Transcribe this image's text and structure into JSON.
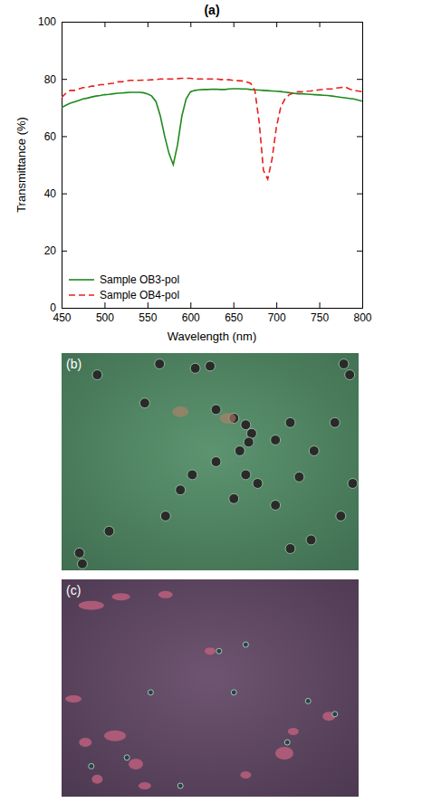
{
  "chart_data": {
    "type": "line",
    "title": "(a)",
    "x_label": "Wavelength (nm)",
    "y_label": "Transmittance (%)",
    "x": [
      450,
      455,
      460,
      465,
      470,
      475,
      480,
      485,
      490,
      495,
      500,
      505,
      510,
      515,
      520,
      525,
      530,
      535,
      540,
      545,
      550,
      555,
      560,
      565,
      570,
      575,
      580,
      585,
      590,
      595,
      600,
      605,
      610,
      615,
      620,
      625,
      630,
      635,
      640,
      645,
      650,
      655,
      660,
      665,
      670,
      675,
      680,
      685,
      690,
      695,
      700,
      705,
      710,
      715,
      720,
      725,
      730,
      735,
      740,
      745,
      750,
      755,
      760,
      765,
      770,
      775,
      780,
      785,
      790,
      795,
      800
    ],
    "series": [
      {
        "name": "Sample OB3-pol",
        "color": "#1e8a1e",
        "line_style": "solid",
        "values": [
          70,
          70.8,
          71.5,
          72,
          72.5,
          73,
          73.3,
          73.7,
          74,
          74.2,
          74.5,
          74.6,
          74.8,
          75,
          75.1,
          75.2,
          75.3,
          75.3,
          75.3,
          75.2,
          74.8,
          74,
          72,
          67,
          60,
          54,
          50,
          57,
          67,
          73,
          75.5,
          76,
          76.2,
          76.3,
          76.3,
          76.4,
          76.4,
          76.3,
          76.3,
          76.5,
          76.6,
          76.6,
          76.5,
          76.5,
          76.3,
          76.2,
          76.1,
          76,
          75.9,
          75.8,
          75.7,
          75.6,
          75.4,
          75.2,
          75,
          74.8,
          74.8,
          74.7,
          74.6,
          74.5,
          74.4,
          74.3,
          74.2,
          74,
          73.8,
          73.6,
          73.4,
          73.2,
          73,
          72.6,
          72.2
        ]
      },
      {
        "name": "Sample OB4-pol",
        "color": "#e8201e",
        "line_style": "dashed",
        "values": [
          73.5,
          75,
          76,
          76,
          76.5,
          77,
          77,
          77.5,
          77.5,
          78,
          78,
          78.3,
          78.5,
          79,
          79,
          79.3,
          79.5,
          79.5,
          79.5,
          79.6,
          79.6,
          79.7,
          79.8,
          80,
          80,
          80,
          80,
          80.1,
          80.2,
          80.2,
          80.2,
          80,
          80,
          80,
          80,
          80,
          80,
          79.8,
          79.8,
          79.7,
          79.5,
          79.4,
          79.3,
          79,
          78.5,
          76,
          65,
          48,
          45,
          52,
          63,
          70,
          73,
          74.5,
          75,
          75.5,
          75.5,
          75.7,
          75.8,
          76,
          76.2,
          76.4,
          76.5,
          76.5,
          76.8,
          77,
          77.2,
          76.5,
          76,
          75.8,
          75.5
        ]
      }
    ],
    "xlim": [
      450,
      800
    ],
    "xticks": [
      450,
      500,
      550,
      600,
      650,
      700,
      750,
      800
    ],
    "ylim": [
      0,
      100
    ],
    "yticks": [
      0,
      20,
      40,
      60,
      80,
      100
    ],
    "grid": false,
    "legend": "lower left"
  },
  "images": [
    {
      "label": "(b)"
    },
    {
      "label": "(c)"
    }
  ]
}
